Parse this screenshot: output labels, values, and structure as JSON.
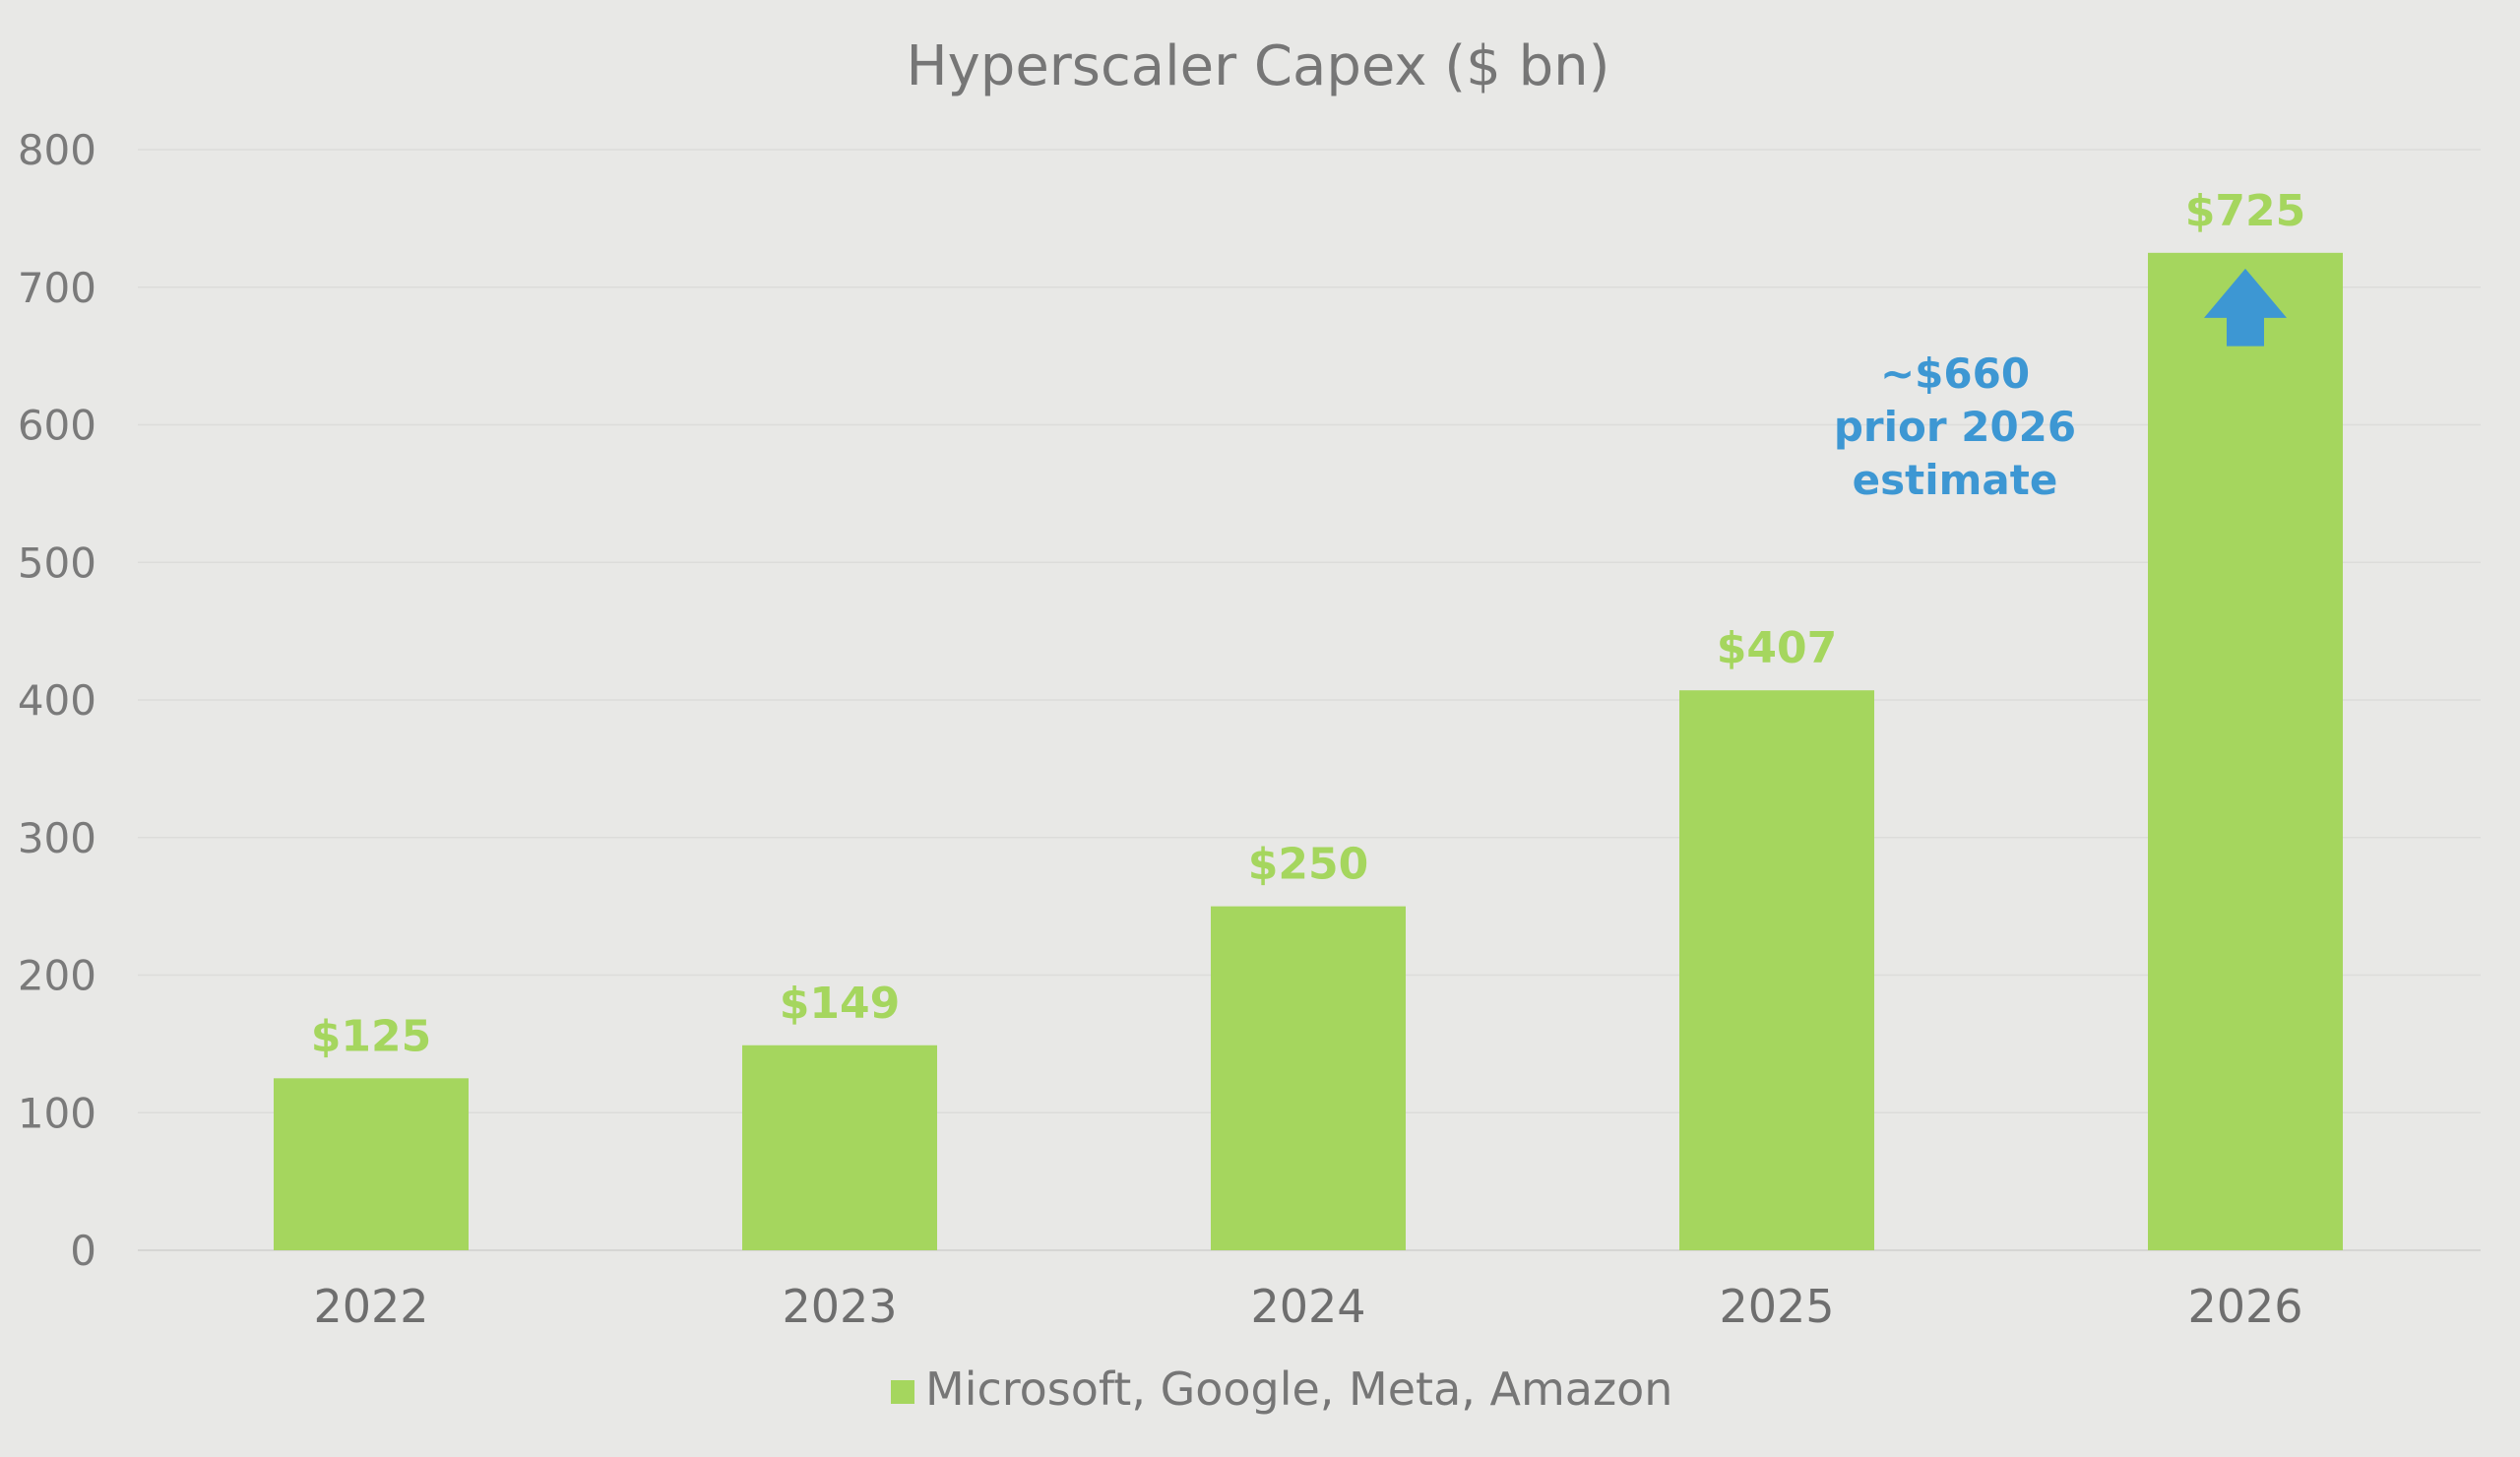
{
  "chart_data": {
    "type": "bar",
    "title": "Hyperscaler Capex ($ bn)",
    "categories": [
      "2022",
      "2023",
      "2024",
      "2025",
      "2026"
    ],
    "series": [
      {
        "name": "Microsoft, Google, Meta, Amazon",
        "values": [
          125,
          149,
          250,
          407,
          725
        ],
        "data_labels": [
          "$125",
          "$149",
          "$250",
          "$407",
          "$725"
        ],
        "color": "#a5d65e"
      }
    ],
    "ylim": [
      0,
      800
    ],
    "yticks": [
      "0",
      "100",
      "200",
      "300",
      "400",
      "500",
      "600",
      "700",
      "800"
    ],
    "grid": true,
    "legend_position": "bottom-center",
    "annotation": {
      "lines": [
        "~$660",
        "prior 2026",
        "estimate"
      ],
      "value": 660,
      "category": "2026",
      "color": "#3d97d3",
      "arrow": "up-arrow-icon"
    }
  }
}
